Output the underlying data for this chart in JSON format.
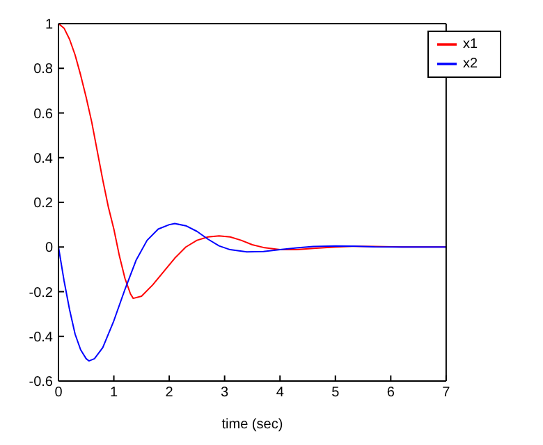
{
  "chart_data": {
    "type": "line",
    "xlabel": "time (sec)",
    "xlim": [
      0,
      7
    ],
    "xticks": [
      0,
      1,
      2,
      3,
      4,
      5,
      6,
      7
    ],
    "ylim": [
      -0.6,
      1
    ],
    "yticks": [
      -0.6,
      -0.4,
      -0.2,
      0,
      0.2,
      0.4,
      0.6,
      0.8,
      1
    ],
    "legend": "top right",
    "grid": false,
    "marker": "none",
    "line_style": "solid",
    "series": [
      {
        "name": "x1",
        "color": "#ff0000",
        "x": [
          0,
          0.1,
          0.2,
          0.3,
          0.4,
          0.5,
          0.6,
          0.7,
          0.8,
          0.9,
          1.0,
          1.1,
          1.2,
          1.3,
          1.35,
          1.5,
          1.7,
          1.9,
          2.1,
          2.3,
          2.5,
          2.7,
          2.9,
          3.1,
          3.3,
          3.5,
          3.7,
          4.0,
          4.3,
          4.6,
          5.0,
          5.3,
          5.7,
          6.2,
          7
        ],
        "values": [
          1,
          0.98,
          0.93,
          0.86,
          0.77,
          0.67,
          0.56,
          0.43,
          0.3,
          0.18,
          0.08,
          -0.04,
          -0.14,
          -0.21,
          -0.23,
          -0.22,
          -0.17,
          -0.11,
          -0.05,
          0,
          0.03,
          0.045,
          0.05,
          0.045,
          0.03,
          0.01,
          -0.002,
          -0.012,
          -0.012,
          -0.006,
          0,
          0.003,
          0.002,
          0,
          0
        ]
      },
      {
        "name": "x2",
        "color": "#0000ff",
        "x": [
          0,
          0.1,
          0.2,
          0.3,
          0.4,
          0.5,
          0.55,
          0.65,
          0.8,
          1.0,
          1.2,
          1.4,
          1.6,
          1.8,
          2.0,
          2.1,
          2.3,
          2.5,
          2.7,
          2.9,
          3.1,
          3.4,
          3.7,
          4.0,
          4.3,
          4.6,
          5.0,
          5.3,
          5.7,
          6.2,
          7
        ],
        "values": [
          0,
          -0.15,
          -0.28,
          -0.39,
          -0.46,
          -0.5,
          -0.51,
          -0.5,
          -0.45,
          -0.33,
          -0.19,
          -0.06,
          0.03,
          0.08,
          0.1,
          0.105,
          0.095,
          0.07,
          0.035,
          0.005,
          -0.012,
          -0.022,
          -0.02,
          -0.012,
          -0.004,
          0.002,
          0.005,
          0.004,
          0.001,
          0,
          0
        ]
      }
    ]
  }
}
